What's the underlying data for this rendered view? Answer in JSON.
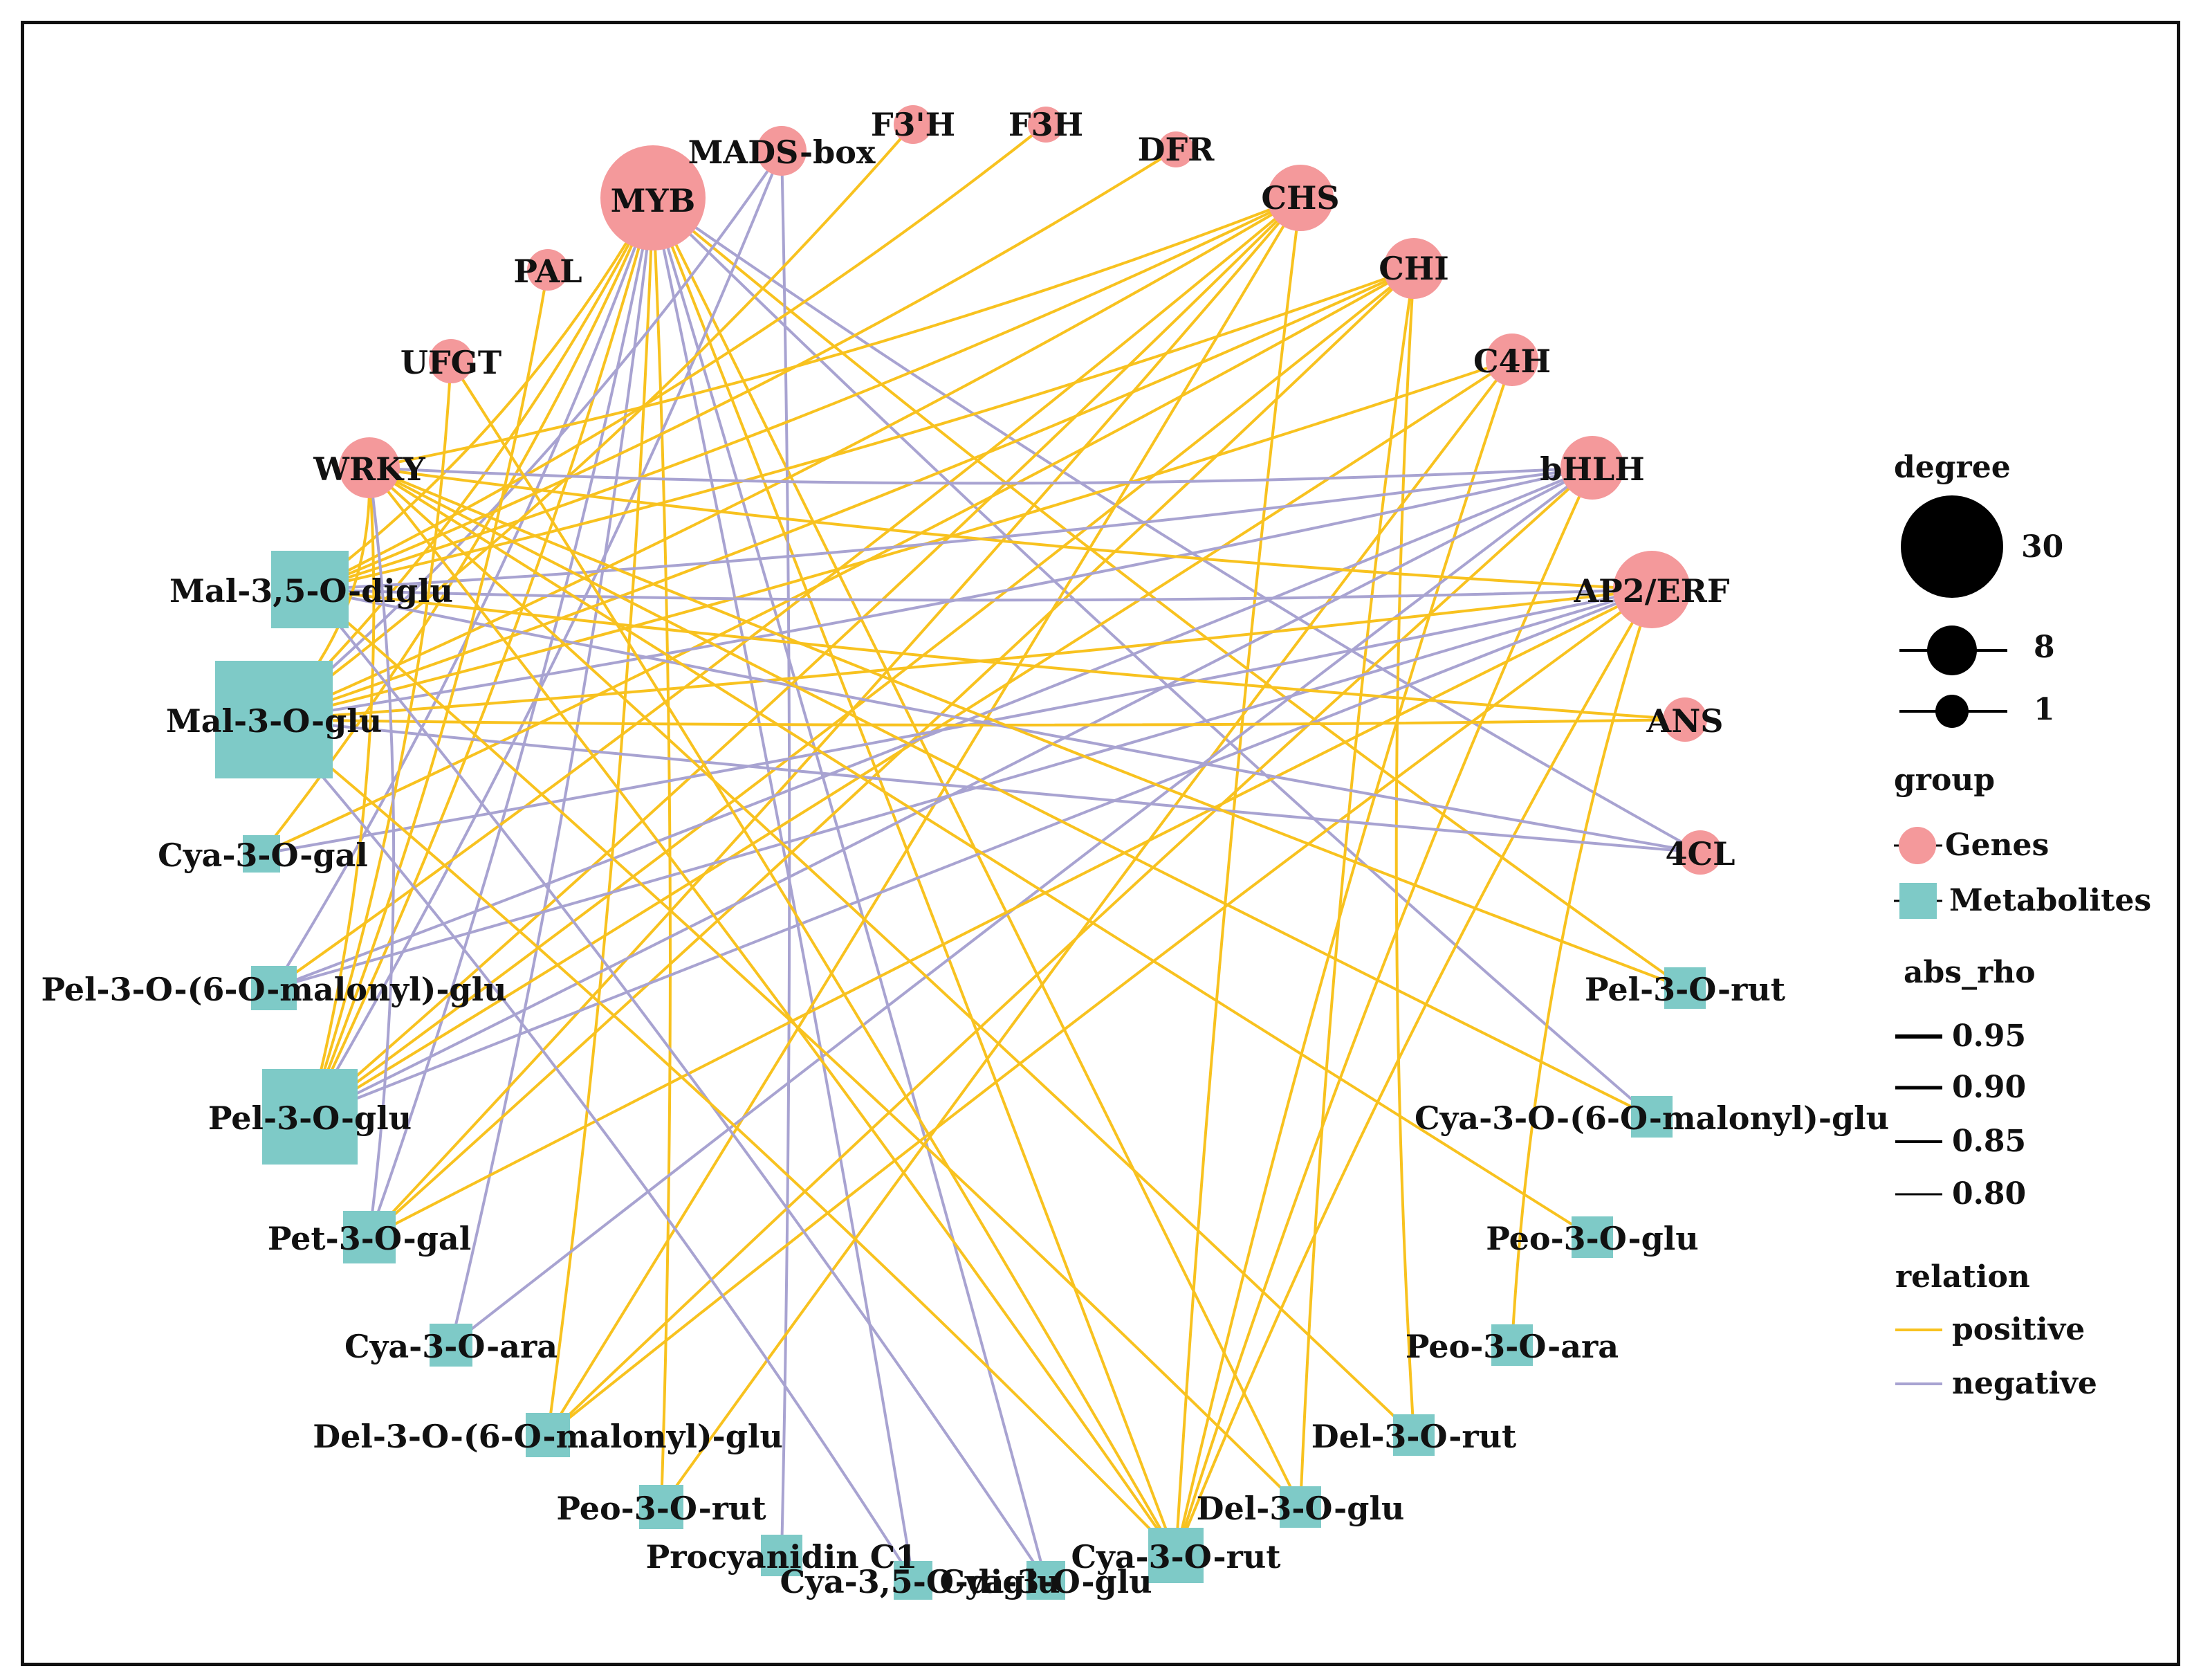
{
  "colors": {
    "gene": "#f4999b",
    "metabolite": "#7ecac7",
    "positive": "#f8c21f",
    "negative": "#a8a3d1",
    "frame": "#111111"
  },
  "network": {
    "nodes": [
      {
        "id": "MYB",
        "label": "MYB",
        "group": "gene",
        "degree": 30
      },
      {
        "id": "MADS",
        "label": "MADS-box",
        "group": "gene",
        "degree": 4
      },
      {
        "id": "F3pH",
        "label": "F3'H",
        "group": "gene",
        "degree": 1
      },
      {
        "id": "F3H",
        "label": "F3H",
        "group": "gene",
        "degree": 1
      },
      {
        "id": "DFR",
        "label": "DFR",
        "group": "gene",
        "degree": 1
      },
      {
        "id": "CHS",
        "label": "CHS",
        "group": "gene",
        "degree": 8
      },
      {
        "id": "CHI",
        "label": "CHI",
        "group": "gene",
        "degree": 7
      },
      {
        "id": "C4H",
        "label": "C4H",
        "group": "gene",
        "degree": 5
      },
      {
        "id": "bHLH",
        "label": "bHLH",
        "group": "gene",
        "degree": 8
      },
      {
        "id": "AP2",
        "label": "AP2/ERF",
        "group": "gene",
        "degree": 12
      },
      {
        "id": "ANS",
        "label": "ANS",
        "group": "gene",
        "degree": 2
      },
      {
        "id": "4CL",
        "label": "4CL",
        "group": "gene",
        "degree": 3
      },
      {
        "id": "PAL",
        "label": "PAL",
        "group": "gene",
        "degree": 1
      },
      {
        "id": "UFGT",
        "label": "UFGT",
        "group": "gene",
        "degree": 2
      },
      {
        "id": "WRKY",
        "label": "WRKY",
        "group": "gene",
        "degree": 7
      },
      {
        "id": "Mal35",
        "label": "Mal-3,5-O-diglu",
        "group": "metabolite",
        "degree": 10
      },
      {
        "id": "Mal3",
        "label": "Mal-3-O-glu",
        "group": "metabolite",
        "degree": 30
      },
      {
        "id": "CyaGal",
        "label": "Cya-3-O-gal",
        "group": "metabolite",
        "degree": 2
      },
      {
        "id": "PelMal",
        "label": "Pel-3-O-(6-O-malonyl)-glu",
        "group": "metabolite",
        "degree": 4
      },
      {
        "id": "PelGlu",
        "label": "Pel-3-O-glu",
        "group": "metabolite",
        "degree": 18
      },
      {
        "id": "PetGal",
        "label": "Pet-3-O-gal",
        "group": "metabolite",
        "degree": 4
      },
      {
        "id": "CyaAra",
        "label": "Cya-3-O-ara",
        "group": "metabolite",
        "degree": 3
      },
      {
        "id": "DelMal",
        "label": "Del-3-O-(6-O-malonyl)-glu",
        "group": "metabolite",
        "degree": 4
      },
      {
        "id": "PeoRut",
        "label": "Peo-3-O-rut",
        "group": "metabolite",
        "degree": 3
      },
      {
        "id": "ProC1",
        "label": "Procyanidin C1",
        "group": "metabolite",
        "degree": 2
      },
      {
        "id": "Cya35",
        "label": "Cya-3,5-O-diglu",
        "group": "metabolite",
        "degree": 3
      },
      {
        "id": "CyaGlu",
        "label": "Cya-3-O-glu",
        "group": "metabolite",
        "degree": 3
      },
      {
        "id": "CyaRut",
        "label": "Cya-3-O-rut",
        "group": "metabolite",
        "degree": 8
      },
      {
        "id": "DelGlu",
        "label": "Del-3-O-glu",
        "group": "metabolite",
        "degree": 3
      },
      {
        "id": "DelRut",
        "label": "Del-3-O-rut",
        "group": "metabolite",
        "degree": 3
      },
      {
        "id": "PeoAra",
        "label": "Peo-3-O-ara",
        "group": "metabolite",
        "degree": 3
      },
      {
        "id": "PeoGlu",
        "label": "Peo-3-O-glu",
        "group": "metabolite",
        "degree": 3
      },
      {
        "id": "CyaMal",
        "label": "Cya-3-O-(6-O-malonyl)-glu",
        "group": "metabolite",
        "degree": 3
      },
      {
        "id": "PelRut",
        "label": "Pel-3-O-rut",
        "group": "metabolite",
        "degree": 3
      }
    ],
    "edges": [
      [
        "MYB",
        "Mal35",
        "positive"
      ],
      [
        "MYB",
        "Mal3",
        "positive"
      ],
      [
        "MYB",
        "PelGlu",
        "positive"
      ],
      [
        "MYB",
        "PetGal",
        "negative"
      ],
      [
        "MYB",
        "PelMal",
        "negative"
      ],
      [
        "MYB",
        "CyaGal",
        "positive"
      ],
      [
        "MYB",
        "DelMal",
        "positive"
      ],
      [
        "MYB",
        "PeoRut",
        "positive"
      ],
      [
        "MYB",
        "CyaRut",
        "positive"
      ],
      [
        "MYB",
        "DelGlu",
        "positive"
      ],
      [
        "MYB",
        "CyaGlu",
        "negative"
      ],
      [
        "MYB",
        "Cya35",
        "negative"
      ],
      [
        "MYB",
        "PelRut",
        "positive"
      ],
      [
        "MYB",
        "CyaMal",
        "negative"
      ],
      [
        "MYB",
        "4CL",
        "negative"
      ],
      [
        "MYB",
        "CyaAra",
        "negative"
      ],
      [
        "MADS",
        "ProC1",
        "negative"
      ],
      [
        "MADS",
        "Mal3",
        "negative"
      ],
      [
        "MADS",
        "PelGlu",
        "negative"
      ],
      [
        "F3pH",
        "Mal3",
        "positive"
      ],
      [
        "F3H",
        "Mal35",
        "positive"
      ],
      [
        "DFR",
        "Mal35",
        "positive"
      ],
      [
        "CHS",
        "Mal3",
        "positive"
      ],
      [
        "CHS",
        "PelGlu",
        "positive"
      ],
      [
        "CHS",
        "Mal35",
        "positive"
      ],
      [
        "CHS",
        "PetGal",
        "positive"
      ],
      [
        "CHS",
        "CyaRut",
        "positive"
      ],
      [
        "CHS",
        "PelMal",
        "positive"
      ],
      [
        "CHS",
        "DelMal",
        "positive"
      ],
      [
        "CHS",
        "WRKY",
        "positive"
      ],
      [
        "CHI",
        "Mal3",
        "positive"
      ],
      [
        "CHI",
        "PelGlu",
        "positive"
      ],
      [
        "CHI",
        "Mal35",
        "positive"
      ],
      [
        "CHI",
        "DelRut",
        "positive"
      ],
      [
        "CHI",
        "PetGal",
        "positive"
      ],
      [
        "CHI",
        "CyaGal",
        "positive"
      ],
      [
        "CHI",
        "DelGlu",
        "positive"
      ],
      [
        "C4H",
        "Mal3",
        "positive"
      ],
      [
        "C4H",
        "PelGlu",
        "positive"
      ],
      [
        "C4H",
        "CyaRut",
        "positive"
      ],
      [
        "C4H",
        "PeoRut",
        "positive"
      ],
      [
        "bHLH",
        "Mal35",
        "negative"
      ],
      [
        "bHLH",
        "Mal3",
        "negative"
      ],
      [
        "bHLH",
        "PelGlu",
        "negative"
      ],
      [
        "bHLH",
        "PelMal",
        "negative"
      ],
      [
        "bHLH",
        "CyaRut",
        "positive"
      ],
      [
        "bHLH",
        "CyaAra",
        "negative"
      ],
      [
        "bHLH",
        "WRKY",
        "negative"
      ],
      [
        "bHLH",
        "DelMal",
        "positive"
      ],
      [
        "AP2",
        "Mal3",
        "positive"
      ],
      [
        "AP2",
        "Mal35",
        "negative"
      ],
      [
        "AP2",
        "PelGlu",
        "negative"
      ],
      [
        "AP2",
        "PelMal",
        "negative"
      ],
      [
        "AP2",
        "PetGal",
        "positive"
      ],
      [
        "AP2",
        "CyaGal",
        "negative"
      ],
      [
        "AP2",
        "CyaRut",
        "positive"
      ],
      [
        "AP2",
        "PeoAra",
        "positive"
      ],
      [
        "AP2",
        "DelMal",
        "positive"
      ],
      [
        "AP2",
        "WRKY",
        "positive"
      ],
      [
        "ANS",
        "Mal3",
        "positive"
      ],
      [
        "ANS",
        "Mal35",
        "positive"
      ],
      [
        "4CL",
        "Mal3",
        "negative"
      ],
      [
        "4CL",
        "Mal35",
        "negative"
      ],
      [
        "PAL",
        "PelGlu",
        "positive"
      ],
      [
        "UFGT",
        "PelGlu",
        "positive"
      ],
      [
        "UFGT",
        "CyaRut",
        "positive"
      ],
      [
        "WRKY",
        "Mal3",
        "positive"
      ],
      [
        "WRKY",
        "PelGlu",
        "positive"
      ],
      [
        "WRKY",
        "CyaRut",
        "positive"
      ],
      [
        "WRKY",
        "DelRut",
        "positive"
      ],
      [
        "WRKY",
        "PetGal",
        "negative"
      ],
      [
        "WRKY",
        "PeoGlu",
        "positive"
      ],
      [
        "WRKY",
        "CyaMal",
        "positive"
      ],
      [
        "WRKY",
        "PelRut",
        "positive"
      ],
      [
        "Mal35",
        "CyaGlu",
        "negative"
      ],
      [
        "Mal35",
        "DelGlu",
        "positive"
      ],
      [
        "Mal3",
        "CyaRut",
        "positive"
      ],
      [
        "Mal3",
        "Cya35",
        "negative"
      ]
    ]
  },
  "legend": {
    "degree_title": "degree",
    "degree_values": [
      "30",
      "8",
      "1"
    ],
    "group_title": "group",
    "group_items": [
      "Genes",
      "Metabolites"
    ],
    "rho_title": "abs_rho",
    "rho_values": [
      "0.95",
      "0.90",
      "0.85",
      "0.80"
    ],
    "relation_title": "relation",
    "relation_items": [
      "positive",
      "negative"
    ]
  }
}
